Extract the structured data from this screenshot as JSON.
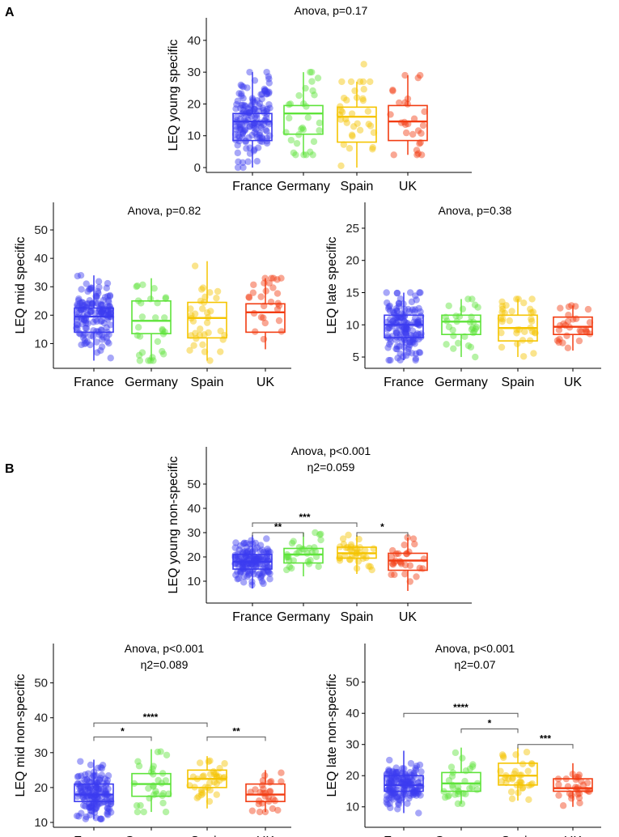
{
  "panel_labels": [
    "A",
    "B"
  ],
  "colors": {
    "France": "#3b3bf0",
    "Germany": "#5ee33a",
    "Spain": "#f5c400",
    "UK": "#f23c12"
  },
  "chart_data": [
    {
      "type": "box",
      "id": "a1",
      "panel": "A",
      "annotation": "Anova,  p=0.17",
      "eta": "",
      "ylabel": "LEQ young specific",
      "ylim": [
        0,
        42
      ],
      "yticks": [
        0,
        10,
        20,
        30,
        40
      ],
      "categories": [
        "France",
        "Germany",
        "Spain",
        "UK"
      ],
      "boxes": [
        {
          "q1": 8.5,
          "median": 14.5,
          "q3": 17,
          "lo": 0,
          "hi": 30,
          "n": 150
        },
        {
          "q1": 10.5,
          "median": 17,
          "q3": 19.5,
          "lo": 4,
          "hi": 30,
          "n": 30
        },
        {
          "q1": 8,
          "median": 16,
          "q3": 19,
          "lo": 0,
          "hi": 27,
          "n": 35
        },
        {
          "q1": 8.5,
          "median": 14.5,
          "q3": 19.5,
          "lo": 4,
          "hi": 29,
          "n": 28
        }
      ],
      "significance": []
    },
    {
      "type": "box",
      "id": "a2",
      "panel": "A",
      "annotation": "Anova,  p=0.82",
      "eta": "",
      "ylabel": "LEQ mid specific",
      "ylim": [
        3,
        54
      ],
      "yticks": [
        10,
        20,
        30,
        40,
        50
      ],
      "categories": [
        "France",
        "Germany",
        "Spain",
        "UK"
      ],
      "boxes": [
        {
          "q1": 14,
          "median": 19.5,
          "q3": 22.5,
          "lo": 4,
          "hi": 34,
          "n": 150
        },
        {
          "q1": 13.5,
          "median": 18,
          "q3": 25,
          "lo": 4,
          "hi": 33,
          "n": 30
        },
        {
          "q1": 12,
          "median": 19,
          "q3": 24.5,
          "lo": 4,
          "hi": 39,
          "n": 35
        },
        {
          "q1": 14,
          "median": 21,
          "q3": 24,
          "lo": 8,
          "hi": 33,
          "n": 28
        }
      ],
      "significance": []
    },
    {
      "type": "box",
      "id": "a3",
      "panel": "A",
      "annotation": "Anova,  p=0.38",
      "eta": "",
      "ylabel": "LEQ late specific",
      "ylim": [
        4,
        26.5
      ],
      "yticks": [
        5,
        10,
        15,
        20,
        25
      ],
      "categories": [
        "France",
        "Germany",
        "Spain",
        "UK"
      ],
      "boxes": [
        {
          "q1": 8,
          "median": 10,
          "q3": 11.5,
          "lo": 4.5,
          "hi": 15,
          "n": 150
        },
        {
          "q1": 8.5,
          "median": 10.5,
          "q3": 11.5,
          "lo": 5,
          "hi": 14,
          "n": 30
        },
        {
          "q1": 7.5,
          "median": 9.5,
          "q3": 11.5,
          "lo": 5,
          "hi": 14,
          "n": 35
        },
        {
          "q1": 8.5,
          "median": 9.7,
          "q3": 11.2,
          "lo": 6,
          "hi": 13,
          "n": 28
        }
      ],
      "significance": []
    },
    {
      "type": "box",
      "id": "b1",
      "panel": "B",
      "annotation": "Anova,  p<0.001",
      "eta": "η2=0.059",
      "ylabel": "LEQ young non-specific",
      "ylim": [
        3,
        52
      ],
      "yticks": [
        10,
        20,
        30,
        40,
        50
      ],
      "categories": [
        "France",
        "Germany",
        "Spain",
        "UK"
      ],
      "boxes": [
        {
          "q1": 15,
          "median": 18,
          "q3": 21,
          "lo": 7,
          "hi": 29,
          "n": 150
        },
        {
          "q1": 17.5,
          "median": 21,
          "q3": 23.5,
          "lo": 12,
          "hi": 30,
          "n": 30
        },
        {
          "q1": 19.5,
          "median": 21.5,
          "q3": 24,
          "lo": 13,
          "hi": 29,
          "n": 35
        },
        {
          "q1": 14.5,
          "median": 18.5,
          "q3": 21.5,
          "lo": 6,
          "hi": 28,
          "n": 28
        }
      ],
      "significance": [
        {
          "from": 0,
          "to": 2,
          "label": "***",
          "y": 34
        },
        {
          "from": 0,
          "to": 1,
          "label": "**",
          "y": 30
        },
        {
          "from": 2,
          "to": 3,
          "label": "*",
          "y": 30
        }
      ]
    },
    {
      "type": "box",
      "id": "b2",
      "panel": "B",
      "annotation": "Anova,  p<0.001",
      "eta": "η2=0.089",
      "ylabel": "LEQ mid non-specific",
      "ylim": [
        10,
        52
      ],
      "yticks": [
        10,
        20,
        30,
        40,
        50
      ],
      "categories": [
        "France",
        "Germany",
        "Spain",
        "UK"
      ],
      "boxes": [
        {
          "q1": 16,
          "median": 18,
          "q3": 21,
          "lo": 11,
          "hi": 28,
          "n": 150
        },
        {
          "q1": 17.5,
          "median": 21,
          "q3": 24,
          "lo": 13,
          "hi": 31,
          "n": 30
        },
        {
          "q1": 20,
          "median": 22.5,
          "q3": 25,
          "lo": 14,
          "hi": 29,
          "n": 35
        },
        {
          "q1": 16,
          "median": 18,
          "q3": 21,
          "lo": 13,
          "hi": 25,
          "n": 28
        }
      ],
      "significance": [
        {
          "from": 0,
          "to": 2,
          "label": "****",
          "y": 38.5
        },
        {
          "from": 0,
          "to": 1,
          "label": "*",
          "y": 34.5
        },
        {
          "from": 2,
          "to": 3,
          "label": "**",
          "y": 34.5
        }
      ]
    },
    {
      "type": "box",
      "id": "b3",
      "panel": "B",
      "annotation": "Anova,  p<0.001",
      "eta": "η2=0.07",
      "ylabel": "LEQ late non-specific",
      "ylim": [
        5,
        52
      ],
      "yticks": [
        10,
        20,
        30,
        40,
        50
      ],
      "categories": [
        "France",
        "Germany",
        "Spain",
        "UK"
      ],
      "boxes": [
        {
          "q1": 15,
          "median": 17,
          "q3": 20,
          "lo": 8,
          "hi": 28,
          "n": 150
        },
        {
          "q1": 15,
          "median": 17.5,
          "q3": 21,
          "lo": 11,
          "hi": 29,
          "n": 30
        },
        {
          "q1": 17,
          "median": 20,
          "q3": 24,
          "lo": 12,
          "hi": 29,
          "n": 35
        },
        {
          "q1": 15,
          "median": 16,
          "q3": 19,
          "lo": 10,
          "hi": 24,
          "n": 28
        }
      ],
      "significance": [
        {
          "from": 0,
          "to": 2,
          "label": "****",
          "y": 40
        },
        {
          "from": 1,
          "to": 2,
          "label": "*",
          "y": 35
        },
        {
          "from": 2,
          "to": 3,
          "label": "***",
          "y": 30
        }
      ]
    }
  ]
}
